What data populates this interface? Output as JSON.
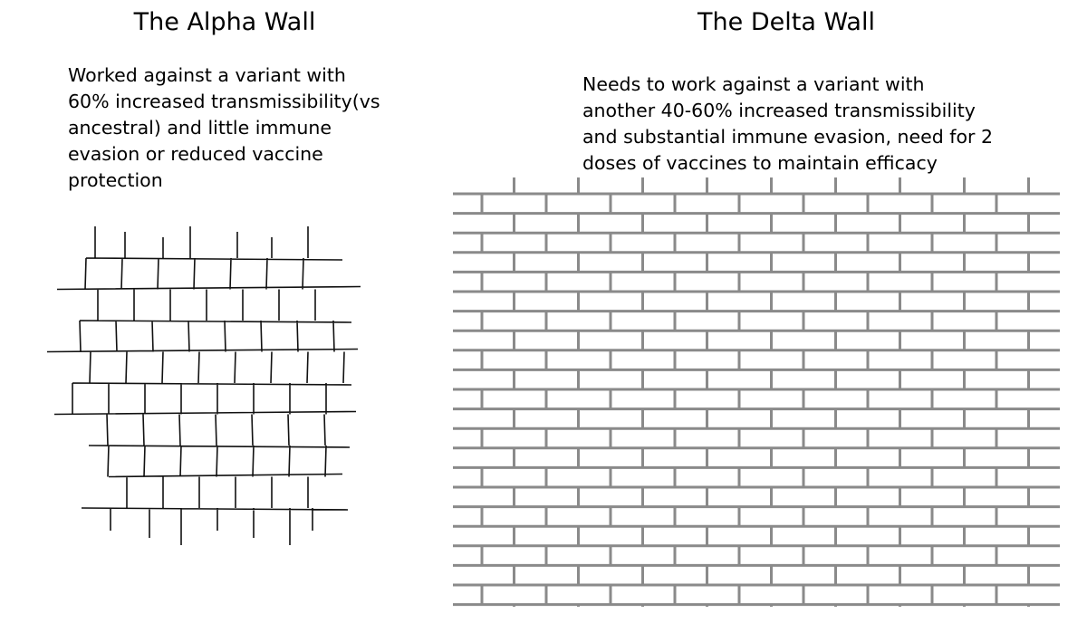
{
  "panels": [
    {
      "title": "The Alpha Wall",
      "lines": [
        "Worked against a variant with",
        "60% increased transmissibility(vs",
        "ancestral) and little immune",
        "evasion or reduced vaccine",
        "protection"
      ]
    },
    {
      "title": "The Delta Wall",
      "lines": [
        "Needs to work against a variant with",
        "another 40-60% increased transmissibility",
        "and substantial immune evasion, need for 2",
        "doses of vaccines to maintain efficacy"
      ]
    }
  ]
}
